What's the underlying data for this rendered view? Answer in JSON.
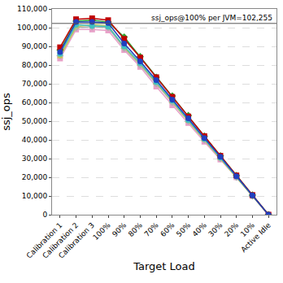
{
  "chart_data": {
    "type": "line",
    "x_label": "Target Load",
    "y_label": "ssj_ops",
    "categories": [
      "Calibration 1",
      "Calibration 2",
      "Calibration 3",
      "100%",
      "90%",
      "80%",
      "70%",
      "60%",
      "50%",
      "40%",
      "30%",
      "20%",
      "10%",
      "Active Idle"
    ],
    "series": [
      {
        "color": "#e8a0c8",
        "marker": "square",
        "values": [
          83500,
          99000,
          99000,
          98500,
          88000,
          79000,
          68500,
          58500,
          49000,
          39000,
          29500,
          20000,
          10000,
          0
        ]
      },
      {
        "color": "#b0b0b0",
        "marker": "diamond",
        "values": [
          85000,
          100000,
          100500,
          100000,
          89000,
          80000,
          70000,
          60000,
          50000,
          40000,
          30000,
          20000,
          10000,
          0
        ]
      },
      {
        "color": "#c8c850",
        "marker": "triangle-up",
        "values": [
          84500,
          100500,
          101500,
          101000,
          89500,
          80500,
          70500,
          60500,
          50000,
          40000,
          30000,
          20300,
          10100,
          0
        ]
      },
      {
        "color": "#40c0c0",
        "marker": "circle",
        "values": [
          86000,
          101500,
          101000,
          100500,
          90000,
          81000,
          71000,
          61000,
          50500,
          40500,
          30500,
          20500,
          10200,
          0
        ]
      },
      {
        "color": "#30a030",
        "marker": "diamond",
        "values": [
          88000,
          103500,
          104000,
          103000,
          95000,
          84500,
          73500,
          63500,
          53000,
          42000,
          31500,
          21000,
          10500,
          0
        ]
      },
      {
        "color": "#c00000",
        "marker": "square",
        "values": [
          89500,
          104500,
          105000,
          104000,
          94000,
          84000,
          73500,
          63000,
          52500,
          42000,
          31500,
          21000,
          10500,
          0
        ]
      },
      {
        "color": "#2040c0",
        "marker": "circle",
        "values": [
          87000,
          103000,
          103000,
          102500,
          91500,
          82000,
          72000,
          61500,
          51500,
          41000,
          31000,
          20500,
          10300,
          0
        ]
      }
    ],
    "ylim": [
      0,
      110000
    ],
    "yticks": [
      0,
      {
        "value": 10000,
        "label": "10,000"
      },
      {
        "value": 20000,
        "label": "20,000"
      },
      {
        "value": 30000,
        "label": "30,000"
      },
      {
        "value": 40000,
        "label": "40,000"
      },
      {
        "value": 50000,
        "label": "50,000"
      },
      {
        "value": 60000,
        "label": "60,000"
      },
      {
        "value": 70000,
        "label": "70,000"
      },
      {
        "value": 80000,
        "label": "80,000"
      },
      {
        "value": 90000,
        "label": "90,000"
      },
      {
        "value": 100000,
        "label": "100,000"
      },
      {
        "value": 110000,
        "label": "110,000"
      }
    ],
    "reference_line": {
      "value": 102255,
      "label": "ssj_ops@100% per JVM=102,255"
    },
    "grid": true
  }
}
